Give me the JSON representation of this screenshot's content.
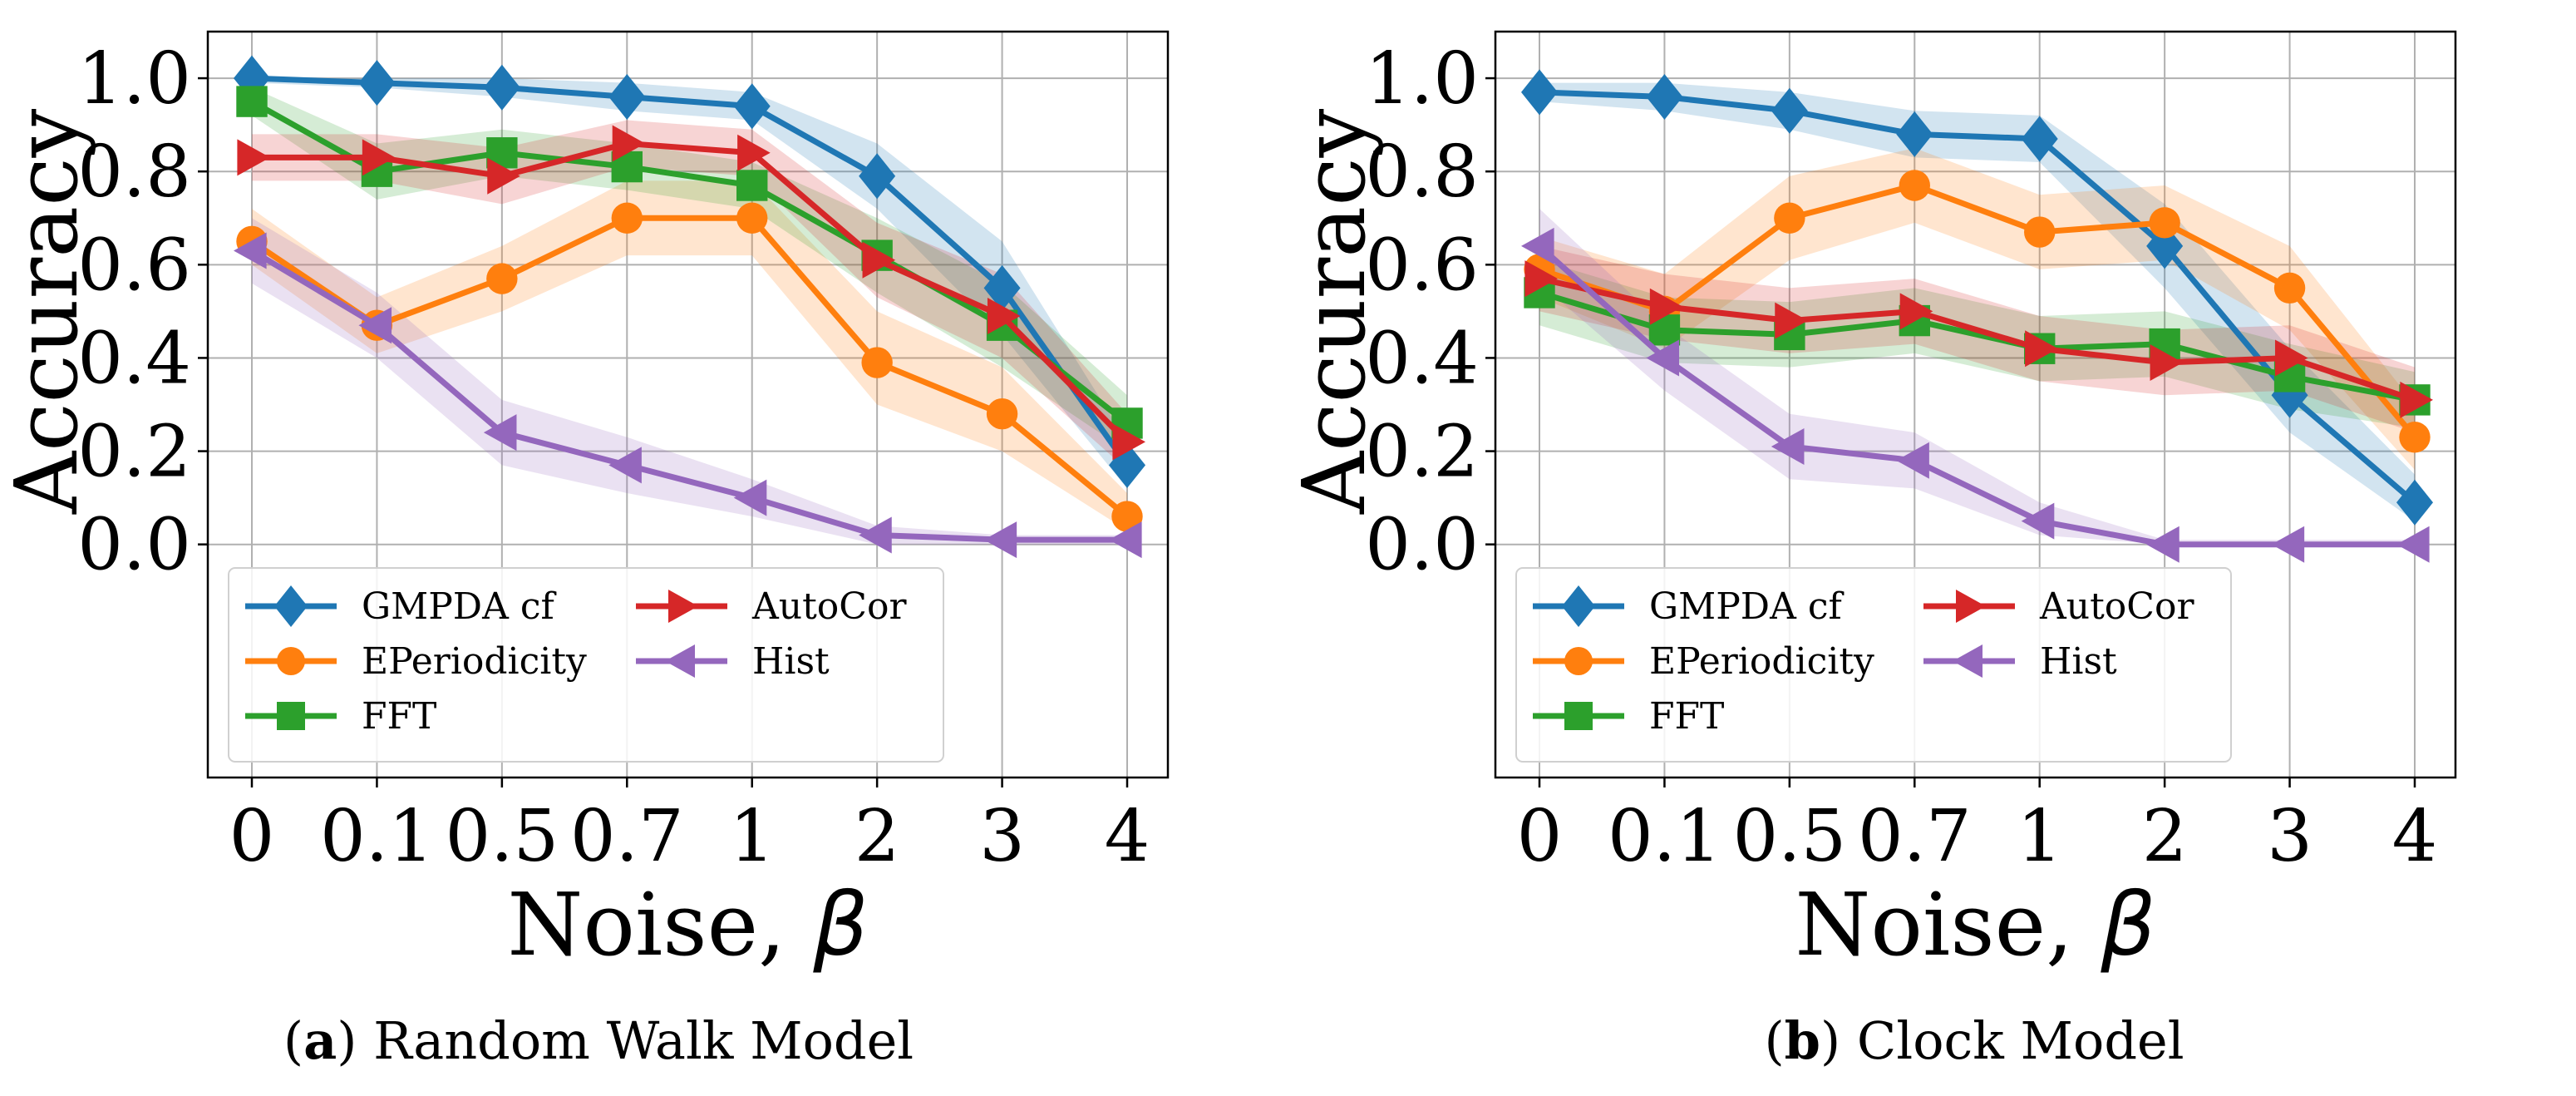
{
  "chart_data": [
    {
      "id": "a",
      "type": "line",
      "caption_letter": "a",
      "caption_text": "Random Walk Model",
      "xlabel": "Noise,",
      "xlabel_symbol": "β",
      "ylabel": "Accuracy",
      "categories": [
        "0",
        "0.1",
        "0.5",
        "0.7",
        "1",
        "2",
        "3",
        "4"
      ],
      "ylim": [
        -0.5,
        1.1
      ],
      "yticks": [
        "0.0",
        "0.2",
        "0.4",
        "0.6",
        "0.8",
        "1.0"
      ],
      "grid": true,
      "legend_position": "lower-left",
      "series": [
        {
          "name": "GMPDA cf",
          "color": "#1f77b4",
          "marker": "diamond",
          "values": [
            1.0,
            0.99,
            0.98,
            0.96,
            0.94,
            0.79,
            0.55,
            0.17
          ],
          "band_low": [
            0.99,
            0.98,
            0.96,
            0.93,
            0.91,
            0.72,
            0.45,
            0.12
          ],
          "band_high": [
            1.0,
            1.0,
            1.0,
            0.99,
            0.97,
            0.86,
            0.65,
            0.22
          ]
        },
        {
          "name": "EPeriodicity",
          "color": "#ff7f0e",
          "marker": "circle",
          "values": [
            0.65,
            0.47,
            0.57,
            0.7,
            0.7,
            0.39,
            0.28,
            0.06
          ],
          "band_low": [
            0.6,
            0.41,
            0.5,
            0.62,
            0.62,
            0.3,
            0.2,
            0.03
          ],
          "band_high": [
            0.72,
            0.53,
            0.64,
            0.78,
            0.78,
            0.5,
            0.38,
            0.11
          ]
        },
        {
          "name": "FFT",
          "color": "#2ca02c",
          "marker": "square",
          "values": [
            0.95,
            0.8,
            0.84,
            0.81,
            0.77,
            0.62,
            0.47,
            0.26
          ],
          "band_low": [
            0.92,
            0.74,
            0.79,
            0.76,
            0.72,
            0.54,
            0.38,
            0.2
          ],
          "band_high": [
            0.98,
            0.86,
            0.89,
            0.86,
            0.82,
            0.7,
            0.56,
            0.32
          ]
        },
        {
          "name": "AutoCor",
          "color": "#d62728",
          "marker": "triangle-right",
          "values": [
            0.83,
            0.83,
            0.79,
            0.86,
            0.84,
            0.61,
            0.49,
            0.22
          ],
          "band_low": [
            0.78,
            0.78,
            0.73,
            0.81,
            0.79,
            0.53,
            0.4,
            0.16
          ],
          "band_high": [
            0.88,
            0.88,
            0.85,
            0.91,
            0.89,
            0.69,
            0.58,
            0.28
          ]
        },
        {
          "name": "Hist",
          "color": "#9467bd",
          "marker": "triangle-left",
          "values": [
            0.63,
            0.47,
            0.24,
            0.17,
            0.1,
            0.02,
            0.01,
            0.01
          ],
          "band_low": [
            0.56,
            0.4,
            0.17,
            0.11,
            0.06,
            0.0,
            0.0,
            0.0
          ],
          "band_high": [
            0.7,
            0.54,
            0.31,
            0.23,
            0.14,
            0.04,
            0.02,
            0.02
          ]
        }
      ]
    },
    {
      "id": "b",
      "type": "line",
      "caption_letter": "b",
      "caption_text": "Clock Model",
      "xlabel": "Noise,",
      "xlabel_symbol": "β",
      "ylabel": "Accuracy",
      "categories": [
        "0",
        "0.1",
        "0.5",
        "0.7",
        "1",
        "2",
        "3",
        "4"
      ],
      "ylim": [
        -0.5,
        1.1
      ],
      "yticks": [
        "0.0",
        "0.2",
        "0.4",
        "0.6",
        "0.8",
        "1.0"
      ],
      "grid": true,
      "legend_position": "lower-left",
      "series": [
        {
          "name": "GMPDA cf",
          "color": "#1f77b4",
          "marker": "diamond",
          "values": [
            0.97,
            0.96,
            0.93,
            0.88,
            0.87,
            0.64,
            0.32,
            0.09
          ],
          "band_low": [
            0.95,
            0.93,
            0.89,
            0.83,
            0.82,
            0.55,
            0.24,
            0.05
          ],
          "band_high": [
            0.99,
            0.99,
            0.97,
            0.93,
            0.92,
            0.73,
            0.42,
            0.15
          ]
        },
        {
          "name": "EPeriodicity",
          "color": "#ff7f0e",
          "marker": "circle",
          "values": [
            0.59,
            0.5,
            0.7,
            0.77,
            0.67,
            0.69,
            0.55,
            0.23
          ],
          "band_low": [
            0.53,
            0.42,
            0.61,
            0.69,
            0.59,
            0.61,
            0.46,
            0.16
          ],
          "band_high": [
            0.66,
            0.58,
            0.79,
            0.85,
            0.75,
            0.77,
            0.64,
            0.3
          ]
        },
        {
          "name": "FFT",
          "color": "#2ca02c",
          "marker": "square",
          "values": [
            0.54,
            0.46,
            0.45,
            0.48,
            0.42,
            0.43,
            0.36,
            0.31
          ],
          "band_low": [
            0.47,
            0.39,
            0.38,
            0.41,
            0.35,
            0.36,
            0.29,
            0.25
          ],
          "band_high": [
            0.61,
            0.53,
            0.52,
            0.55,
            0.49,
            0.5,
            0.43,
            0.37
          ]
        },
        {
          "name": "AutoCor",
          "color": "#d62728",
          "marker": "triangle-right",
          "values": [
            0.57,
            0.51,
            0.48,
            0.5,
            0.42,
            0.39,
            0.4,
            0.31
          ],
          "band_low": [
            0.5,
            0.44,
            0.41,
            0.43,
            0.35,
            0.32,
            0.33,
            0.24
          ],
          "band_high": [
            0.64,
            0.58,
            0.55,
            0.57,
            0.49,
            0.46,
            0.47,
            0.38
          ]
        },
        {
          "name": "Hist",
          "color": "#9467bd",
          "marker": "triangle-left",
          "values": [
            0.64,
            0.4,
            0.21,
            0.18,
            0.05,
            0.0,
            0.0,
            0.0
          ],
          "band_low": [
            0.56,
            0.33,
            0.14,
            0.12,
            0.02,
            0.0,
            0.0,
            0.0
          ],
          "band_high": [
            0.72,
            0.47,
            0.28,
            0.24,
            0.09,
            0.01,
            0.01,
            0.01
          ]
        }
      ]
    }
  ]
}
